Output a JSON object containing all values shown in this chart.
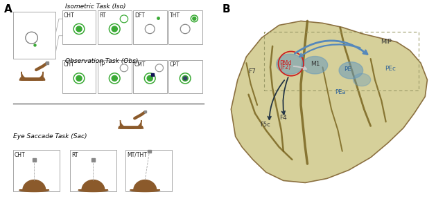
{
  "panel_A_label": "A",
  "panel_B_label": "B",
  "iso_task_label": "Isometric Task (Iso)",
  "obs_task_label": "Observation Task (Obs)",
  "sac_task_label": "Eye Saccade Task (Sac)",
  "iso_cols": [
    "CHT",
    "RT",
    "DFT",
    "THT"
  ],
  "obs_cols": [
    "CHT",
    "TP",
    "CMT",
    "CPT"
  ],
  "sac_cols": [
    "CHT",
    "RT",
    "MT/THT"
  ],
  "green_fill": "#3aaa35",
  "green_ring": "#3aaa35",
  "gray_circle": "#bbbbbb",
  "monkey_brown": "#8B5A2B",
  "monkey_dark": "#5C3317",
  "box_edge": "#999999",
  "box_face": "#ffffff",
  "blue_arrow": "#5588bb",
  "gray_arrow": "#aaaaaa",
  "dark_arrow": "#223344",
  "red_ring": "#cc2222",
  "brain_yellow": "#d8d4a0",
  "brain_edge": "#8B7040",
  "blue_spot": "#7799bb",
  "dashed_box": "#aaaaaa",
  "label_blue": "#336699",
  "label_dark": "#333333",
  "label_red": "#cc2222"
}
